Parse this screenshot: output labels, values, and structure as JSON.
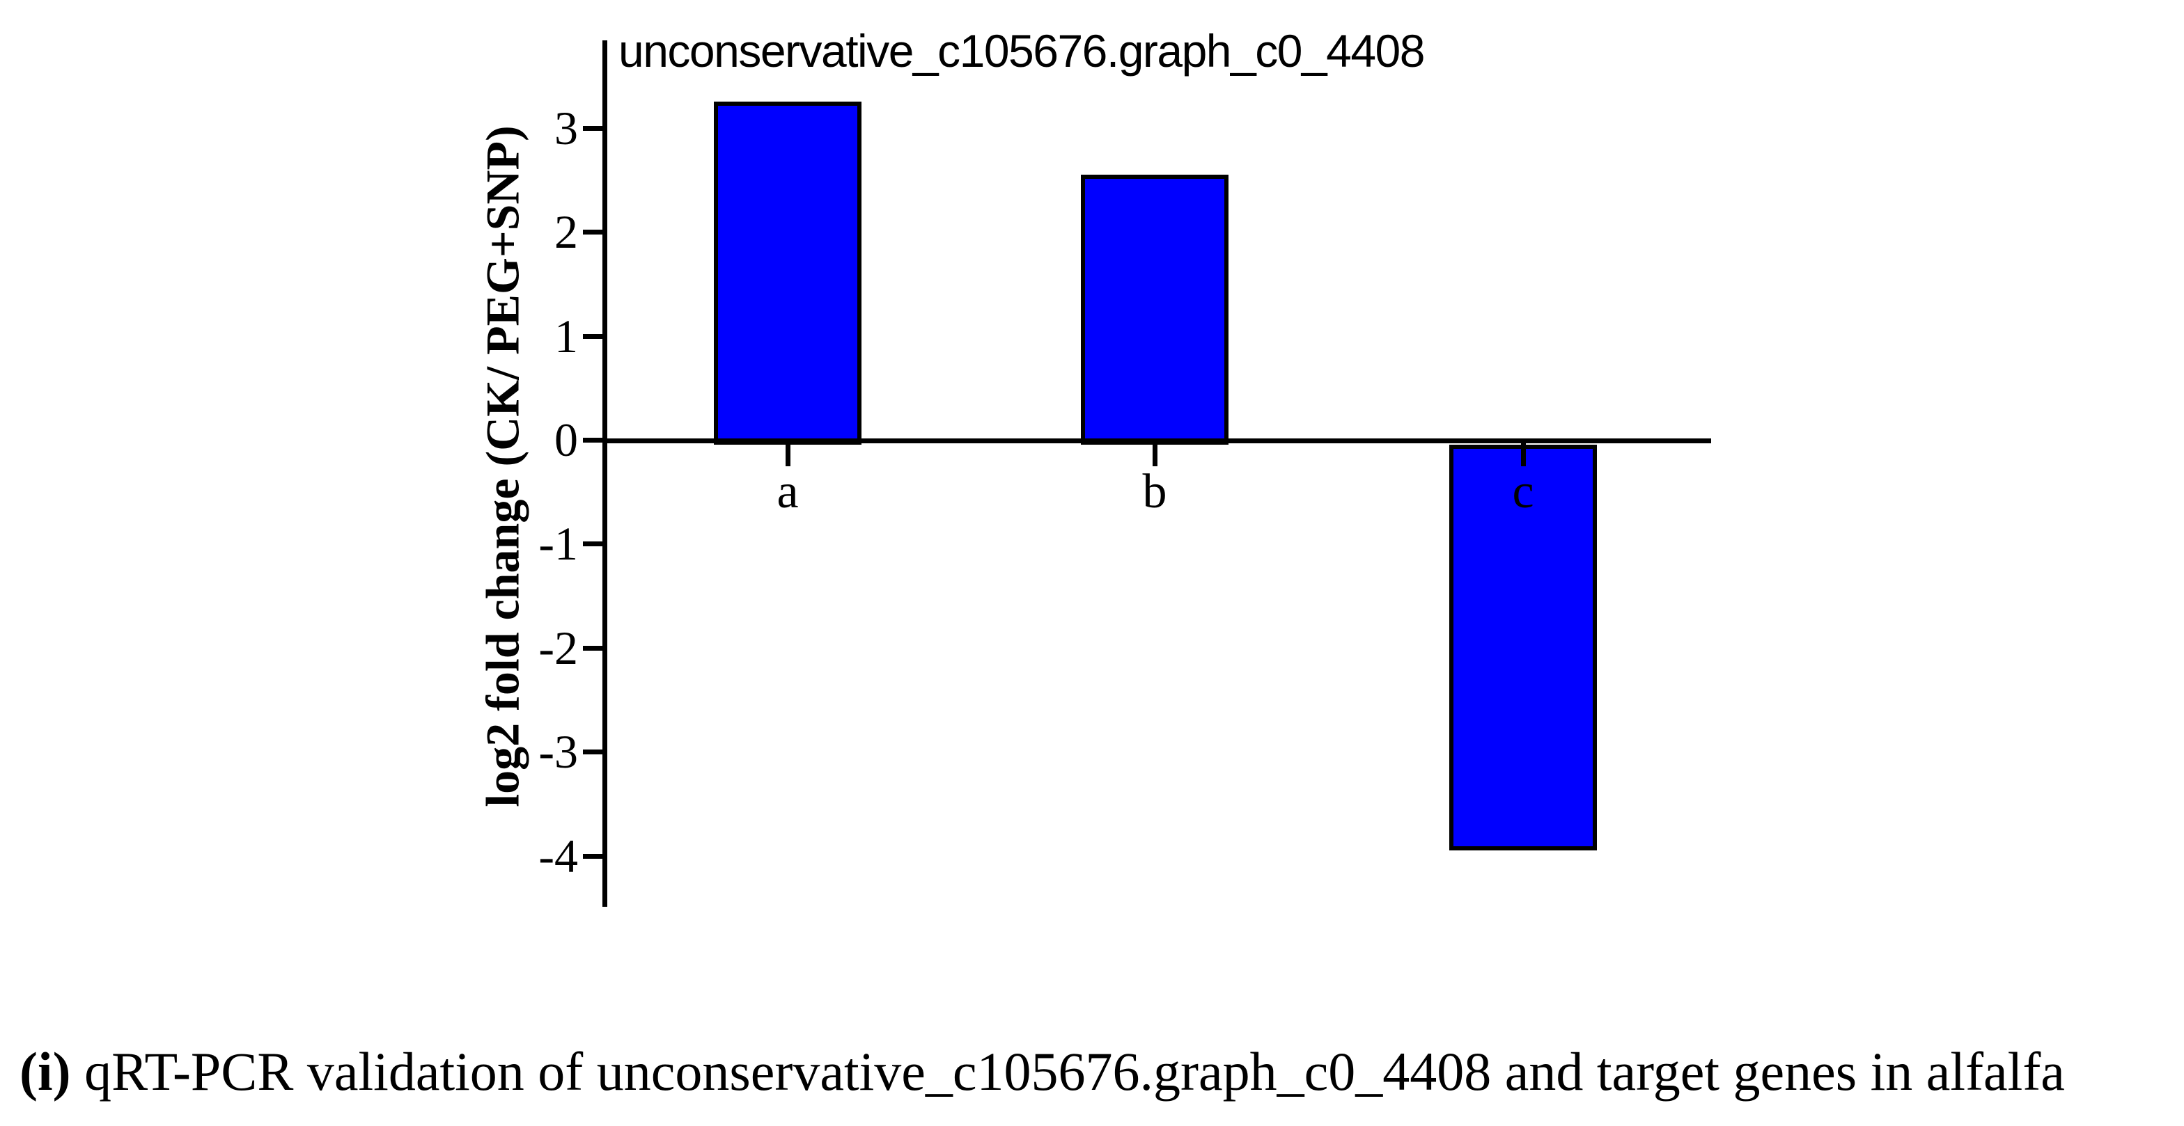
{
  "chart_data": {
    "type": "bar",
    "title": "unconservative_c105676.graph_c0_4408",
    "xlabel": "",
    "ylabel": "log2 fold change (CK/ PEG+SNP)",
    "categories": [
      "a",
      "b",
      "c"
    ],
    "values": [
      3.25,
      2.55,
      -3.9
    ],
    "yticks": [
      3,
      2,
      1,
      0,
      -1,
      -2,
      -3,
      -4
    ],
    "ylim": [
      -4.5,
      3.85
    ],
    "grid": false,
    "legend_position": "none",
    "bar_color": "#0000FF",
    "bar_border_color": "#000000",
    "axis_color": "#000000"
  },
  "caption": {
    "label": "(i)",
    "text": " qRT-PCR validation of unconservative_c105676.graph_c0_4408 and target genes in alfalfa"
  }
}
